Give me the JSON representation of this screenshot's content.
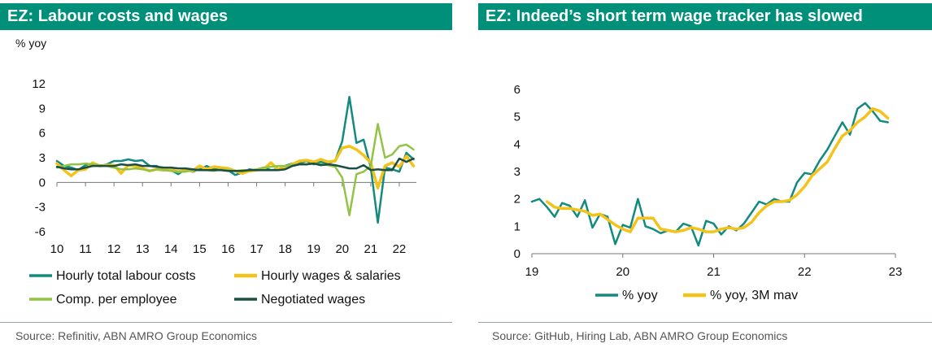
{
  "left": {
    "title": "EZ: Labour costs and wages",
    "unit": "% yoy",
    "source": "Source: Refinitiv, ABN AMRO Group Economics"
  },
  "right": {
    "title": "EZ: Indeed’s short term wage tracker has slowed",
    "source": "Source: GitHub, Hiring Lab, ABN AMRO Group Economics"
  },
  "colors": {
    "header": "#00907a",
    "teal": "#138a80",
    "yellow": "#f4c31b",
    "lightgreen": "#92c346",
    "darkgreen": "#1b4f43"
  },
  "chart_data": [
    {
      "type": "line",
      "title": "EZ: Labour costs and wages",
      "ylabel": "% yoy",
      "ylim": [
        -6,
        12
      ],
      "yticks": [
        12,
        9,
        6,
        3,
        0,
        -3,
        -6
      ],
      "xlim": [
        2010,
        2022.6
      ],
      "xticks": [
        2010,
        2011,
        2012,
        2013,
        2014,
        2015,
        2016,
        2017,
        2018,
        2019,
        2020,
        2021,
        2022
      ],
      "xtick_labels": [
        "10",
        "11",
        "12",
        "13",
        "14",
        "15",
        "16",
        "17",
        "18",
        "19",
        "20",
        "21",
        "22"
      ],
      "grid": false,
      "legend": "bottom",
      "series": [
        {
          "name": "Hourly total labour costs",
          "color": "#138a80",
          "x": [
            2010.0,
            2010.25,
            2010.5,
            2010.75,
            2011.0,
            2011.25,
            2011.5,
            2011.75,
            2012.0,
            2012.25,
            2012.5,
            2012.75,
            2013.0,
            2013.25,
            2013.5,
            2013.75,
            2014.0,
            2014.25,
            2014.5,
            2014.75,
            2015.0,
            2015.25,
            2015.5,
            2015.75,
            2016.0,
            2016.25,
            2016.5,
            2016.75,
            2017.0,
            2017.25,
            2017.5,
            2017.75,
            2018.0,
            2018.25,
            2018.5,
            2018.75,
            2019.0,
            2019.25,
            2019.5,
            2019.75,
            2020.0,
            2020.25,
            2020.5,
            2020.75,
            2021.0,
            2021.25,
            2021.5,
            2021.75,
            2022.0,
            2022.25,
            2022.5
          ],
          "y": [
            2.6,
            2.0,
            1.8,
            1.5,
            2.1,
            2.3,
            2.0,
            2.2,
            2.6,
            2.6,
            2.8,
            2.6,
            2.7,
            2.0,
            2.0,
            1.5,
            1.5,
            1.0,
            1.6,
            1.3,
            1.6,
            2.0,
            1.6,
            1.8,
            1.5,
            0.9,
            1.2,
            1.6,
            1.5,
            1.8,
            1.5,
            1.6,
            2.0,
            2.3,
            2.3,
            2.6,
            2.2,
            2.5,
            2.3,
            2.6,
            5.0,
            10.4,
            4.8,
            5.2,
            1.8,
            -4.9,
            1.8,
            1.6,
            1.3,
            3.6,
            2.8
          ]
        },
        {
          "name": "Hourly wages & salaries",
          "color": "#f4c31b",
          "x": [
            2010.0,
            2010.25,
            2010.5,
            2010.75,
            2011.0,
            2011.25,
            2011.5,
            2011.75,
            2012.0,
            2012.25,
            2012.5,
            2012.75,
            2013.0,
            2013.25,
            2013.5,
            2013.75,
            2014.0,
            2014.25,
            2014.5,
            2014.75,
            2015.0,
            2015.25,
            2015.5,
            2015.75,
            2016.0,
            2016.25,
            2016.5,
            2016.75,
            2017.0,
            2017.25,
            2017.5,
            2017.75,
            2018.0,
            2018.25,
            2018.5,
            2018.75,
            2019.0,
            2019.25,
            2019.5,
            2019.75,
            2020.0,
            2020.25,
            2020.5,
            2020.75,
            2021.0,
            2021.25,
            2021.5,
            2021.75,
            2022.0,
            2022.25,
            2022.5
          ],
          "y": [
            2.3,
            1.5,
            0.8,
            1.5,
            1.6,
            2.4,
            2.0,
            2.1,
            2.1,
            1.1,
            2.1,
            2.0,
            1.7,
            1.4,
            1.6,
            1.5,
            1.6,
            1.3,
            1.5,
            1.4,
            2.0,
            1.6,
            1.9,
            1.8,
            1.7,
            1.4,
            1.1,
            1.4,
            1.5,
            1.6,
            2.4,
            1.6,
            1.8,
            2.2,
            2.6,
            2.7,
            2.5,
            2.8,
            2.5,
            2.6,
            4.2,
            4.4,
            4.0,
            3.3,
            2.4,
            -0.7,
            2.0,
            2.4,
            1.9,
            3.2,
            2.0
          ]
        },
        {
          "name": "Comp. per employee",
          "color": "#92c346",
          "x": [
            2010.0,
            2010.25,
            2010.5,
            2010.75,
            2011.0,
            2011.25,
            2011.5,
            2011.75,
            2012.0,
            2012.25,
            2012.5,
            2012.75,
            2013.0,
            2013.25,
            2013.5,
            2013.75,
            2014.0,
            2014.25,
            2014.5,
            2014.75,
            2015.0,
            2015.25,
            2015.5,
            2015.75,
            2016.0,
            2016.25,
            2016.5,
            2016.75,
            2017.0,
            2017.25,
            2017.5,
            2017.75,
            2018.0,
            2018.25,
            2018.5,
            2018.75,
            2019.0,
            2019.25,
            2019.5,
            2019.75,
            2020.0,
            2020.25,
            2020.5,
            2020.75,
            2021.0,
            2021.25,
            2021.5,
            2021.75,
            2022.0,
            2022.25,
            2022.5
          ],
          "y": [
            1.8,
            2.0,
            2.2,
            2.2,
            2.3,
            2.2,
            2.1,
            2.0,
            1.8,
            1.6,
            1.6,
            1.7,
            1.6,
            1.4,
            1.6,
            1.5,
            1.4,
            1.3,
            1.3,
            1.5,
            1.5,
            1.5,
            1.4,
            1.6,
            1.5,
            1.4,
            1.5,
            1.5,
            1.6,
            1.8,
            1.9,
            2.0,
            2.0,
            2.1,
            2.2,
            2.2,
            2.3,
            2.2,
            2.1,
            1.9,
            0.6,
            -4.0,
            1.0,
            1.3,
            2.0,
            7.1,
            3.0,
            3.4,
            4.4,
            4.6,
            4.0
          ]
        },
        {
          "name": "Negotiated wages",
          "color": "#1b4f43",
          "x": [
            2010.0,
            2010.25,
            2010.5,
            2010.75,
            2011.0,
            2011.25,
            2011.5,
            2011.75,
            2012.0,
            2012.25,
            2012.5,
            2012.75,
            2013.0,
            2013.25,
            2013.5,
            2013.75,
            2014.0,
            2014.25,
            2014.5,
            2014.75,
            2015.0,
            2015.25,
            2015.5,
            2015.75,
            2016.0,
            2016.25,
            2016.5,
            2016.75,
            2017.0,
            2017.25,
            2017.5,
            2017.75,
            2018.0,
            2018.25,
            2018.5,
            2018.75,
            2019.0,
            2019.25,
            2019.5,
            2019.75,
            2020.0,
            2020.25,
            2020.5,
            2020.75,
            2021.0,
            2021.25,
            2021.5,
            2021.75,
            2022.0,
            2022.25,
            2022.5
          ],
          "y": [
            1.9,
            1.7,
            1.6,
            1.6,
            1.8,
            2.0,
            2.0,
            2.0,
            2.0,
            2.2,
            2.1,
            2.2,
            2.0,
            2.0,
            1.9,
            1.8,
            1.8,
            1.7,
            1.7,
            1.6,
            1.5,
            1.5,
            1.5,
            1.5,
            1.4,
            1.4,
            1.4,
            1.5,
            1.5,
            1.5,
            1.5,
            1.5,
            1.6,
            2.0,
            2.2,
            2.2,
            2.3,
            2.1,
            2.2,
            2.1,
            1.9,
            1.7,
            1.7,
            2.1,
            1.5,
            1.6,
            1.5,
            1.5,
            2.9,
            2.5,
            2.9
          ]
        }
      ]
    },
    {
      "type": "line",
      "title": "EZ: Indeed’s short term wage tracker has slowed",
      "ylim": [
        0,
        6
      ],
      "yticks": [
        6,
        5,
        4,
        3,
        2,
        1,
        0
      ],
      "xlim": [
        2019,
        2023
      ],
      "xticks": [
        2019,
        2020,
        2021,
        2022,
        2023
      ],
      "xtick_labels": [
        "19",
        "20",
        "21",
        "22",
        "23"
      ],
      "grid": false,
      "legend": "bottom",
      "series": [
        {
          "name": "% yoy",
          "color": "#138a80",
          "x": [
            2019.0,
            2019.083,
            2019.167,
            2019.25,
            2019.333,
            2019.417,
            2019.5,
            2019.583,
            2019.667,
            2019.75,
            2019.833,
            2019.917,
            2020.0,
            2020.083,
            2020.167,
            2020.25,
            2020.333,
            2020.417,
            2020.5,
            2020.583,
            2020.667,
            2020.75,
            2020.833,
            2020.917,
            2021.0,
            2021.083,
            2021.167,
            2021.25,
            2021.333,
            2021.417,
            2021.5,
            2021.583,
            2021.667,
            2021.75,
            2021.833,
            2021.917,
            2022.0,
            2022.083,
            2022.167,
            2022.25,
            2022.333,
            2022.417,
            2022.5,
            2022.583,
            2022.667,
            2022.75,
            2022.833,
            2022.917
          ],
          "y": [
            1.9,
            2.0,
            1.7,
            1.35,
            1.85,
            1.75,
            1.35,
            1.95,
            0.95,
            1.45,
            1.35,
            0.35,
            1.05,
            0.95,
            2.0,
            1.0,
            0.9,
            0.75,
            0.85,
            0.8,
            1.1,
            1.0,
            0.3,
            1.2,
            1.1,
            0.7,
            1.0,
            0.85,
            1.1,
            1.5,
            1.9,
            1.8,
            2.0,
            1.9,
            1.9,
            2.6,
            2.95,
            2.9,
            3.4,
            3.8,
            4.3,
            4.8,
            4.35,
            5.3,
            5.5,
            5.2,
            4.85,
            4.8
          ]
        },
        {
          "name": "% yoy, 3M mav",
          "color": "#f4c31b",
          "x": [
            2019.167,
            2019.25,
            2019.333,
            2019.417,
            2019.5,
            2019.583,
            2019.667,
            2019.75,
            2019.833,
            2019.917,
            2020.0,
            2020.083,
            2020.167,
            2020.25,
            2020.333,
            2020.417,
            2020.5,
            2020.583,
            2020.667,
            2020.75,
            2020.833,
            2020.917,
            2021.0,
            2021.083,
            2021.167,
            2021.25,
            2021.333,
            2021.417,
            2021.5,
            2021.583,
            2021.667,
            2021.75,
            2021.833,
            2021.917,
            2022.0,
            2022.083,
            2022.167,
            2022.25,
            2022.333,
            2022.417,
            2022.5,
            2022.583,
            2022.667,
            2022.75,
            2022.833,
            2022.917
          ],
          "y": [
            1.9,
            1.7,
            1.65,
            1.65,
            1.6,
            1.55,
            1.4,
            1.45,
            1.25,
            1.05,
            0.9,
            0.8,
            1.3,
            1.3,
            1.3,
            0.9,
            0.85,
            0.8,
            0.85,
            0.95,
            0.9,
            0.8,
            0.8,
            0.9,
            0.95,
            0.9,
            0.95,
            1.15,
            1.5,
            1.75,
            1.9,
            1.9,
            1.95,
            2.15,
            2.45,
            2.85,
            3.1,
            3.35,
            3.85,
            4.3,
            4.5,
            4.8,
            5.0,
            5.3,
            5.2,
            4.95
          ]
        }
      ]
    }
  ]
}
